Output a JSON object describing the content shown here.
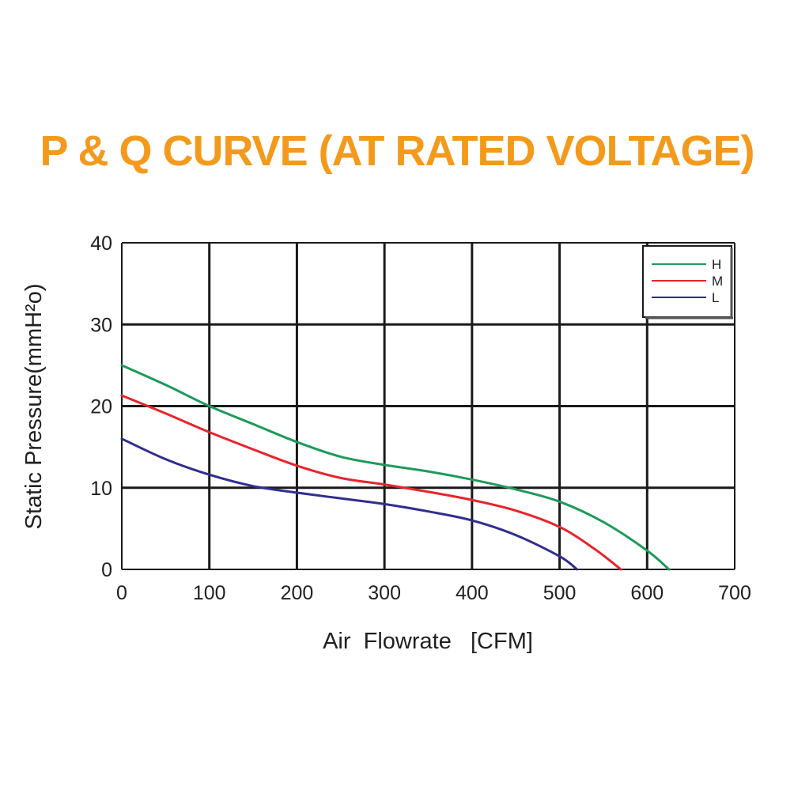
{
  "colors": {
    "title": "#f39a1c",
    "grid": "#1a1a1a",
    "text": "#231f20"
  },
  "chart_data": {
    "type": "line",
    "title": "P & Q CURVE (AT RATED VOLTAGE)",
    "xlabel": "Air  Flowrate   [CFM]",
    "ylabel": "Static Pressure(mmH²o)",
    "xlim": [
      0,
      700
    ],
    "ylim": [
      0,
      40
    ],
    "xticks": [
      0,
      100,
      200,
      300,
      400,
      500,
      600,
      700
    ],
    "yticks": [
      0,
      10,
      20,
      30,
      40
    ],
    "grid": true,
    "legend_position": "top-right",
    "series": [
      {
        "name": "H",
        "color": "#1f9a5a",
        "x": [
          0,
          50,
          100,
          150,
          200,
          250,
          300,
          350,
          400,
          450,
          500,
          550,
          600,
          625
        ],
        "y": [
          25,
          22.6,
          20,
          17.8,
          15.6,
          13.8,
          12.8,
          12,
          11,
          9.8,
          8.3,
          5.8,
          2.3,
          0
        ]
      },
      {
        "name": "M",
        "color": "#e8242b",
        "x": [
          0,
          50,
          100,
          150,
          200,
          250,
          300,
          350,
          400,
          450,
          500,
          540,
          570
        ],
        "y": [
          21.3,
          19.1,
          16.8,
          14.7,
          12.7,
          11.2,
          10.4,
          9.5,
          8.5,
          7.2,
          5.2,
          2.5,
          0
        ]
      },
      {
        "name": "L",
        "color": "#2e2e8f",
        "x": [
          0,
          50,
          100,
          150,
          200,
          250,
          300,
          350,
          400,
          450,
          500,
          520
        ],
        "y": [
          16,
          13.5,
          11.6,
          10.2,
          9.4,
          8.7,
          8,
          7.1,
          6,
          4.2,
          1.6,
          0
        ]
      }
    ]
  }
}
